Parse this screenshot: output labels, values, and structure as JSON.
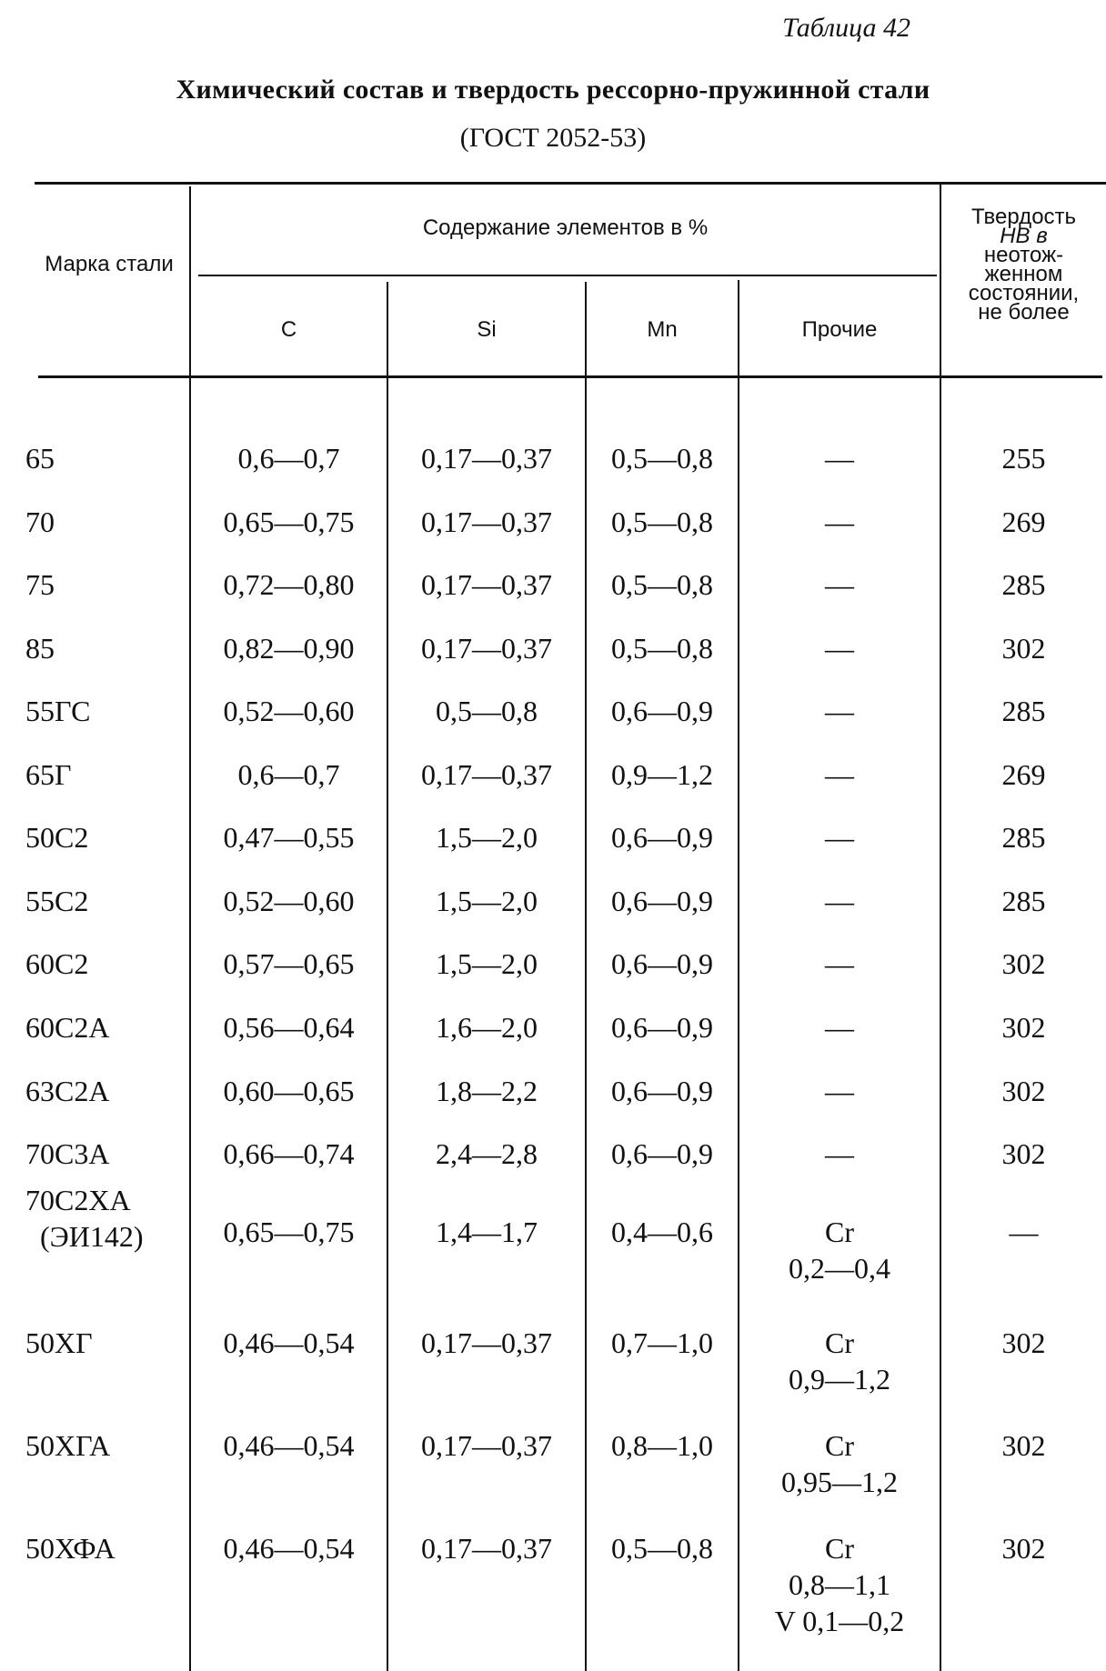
{
  "table_number": "Таблица 42",
  "title": "Химический состав и твердость рессорно-пружинной стали",
  "standard": "(ГОСТ 2052-53)",
  "headers": {
    "grade": "Марка стали",
    "content_group": "Содержание элементов в %",
    "c": "C",
    "si": "Si",
    "mn": "Mn",
    "other": "Прочие",
    "hardness_line1": "Твердость",
    "hardness_line2": "HB в",
    "hardness_line3": "неотож-",
    "hardness_line4": "женном",
    "hardness_line5": "состоянии,",
    "hardness_line6": "не более"
  },
  "rows": [
    {
      "grade": "65",
      "c": "0,6—0,7",
      "si": "0,17—0,37",
      "mn": "0,5—0,8",
      "other": "—",
      "hb": "255"
    },
    {
      "grade": "70",
      "c": "0,65—0,75",
      "si": "0,17—0,37",
      "mn": "0,5—0,8",
      "other": "—",
      "hb": "269"
    },
    {
      "grade": "75",
      "c": "0,72—0,80",
      "si": "0,17—0,37",
      "mn": "0,5—0,8",
      "other": "—",
      "hb": "285"
    },
    {
      "grade": "85",
      "c": "0,82—0,90",
      "si": "0,17—0,37",
      "mn": "0,5—0,8",
      "other": "—",
      "hb": "302"
    },
    {
      "grade": "55ГС",
      "c": "0,52—0,60",
      "si": "0,5—0,8",
      "mn": "0,6—0,9",
      "other": "—",
      "hb": "285"
    },
    {
      "grade": "65Г",
      "c": "0,6—0,7",
      "si": "0,17—0,37",
      "mn": "0,9—1,2",
      "other": "—",
      "hb": "269"
    },
    {
      "grade": "50С2",
      "c": "0,47—0,55",
      "si": "1,5—2,0",
      "mn": "0,6—0,9",
      "other": "—",
      "hb": "285"
    },
    {
      "grade": "55С2",
      "c": "0,52—0,60",
      "si": "1,5—2,0",
      "mn": "0,6—0,9",
      "other": "—",
      "hb": "285"
    },
    {
      "grade": "60С2",
      "c": "0,57—0,65",
      "si": "1,5—2,0",
      "mn": "0,6—0,9",
      "other": "—",
      "hb": "302"
    },
    {
      "grade": "60С2А",
      "c": "0,56—0,64",
      "si": "1,6—2,0",
      "mn": "0,6—0,9",
      "other": "—",
      "hb": "302"
    },
    {
      "grade": "63С2А",
      "c": "0,60—0,65",
      "si": "1,8—2,2",
      "mn": "0,6—0,9",
      "other": "—",
      "hb": "302"
    },
    {
      "grade": "70С3А",
      "c": "0,66—0,74",
      "si": "2,4—2,8",
      "mn": "0,6—0,9",
      "other": "—",
      "hb": "302"
    },
    {
      "grade": "70С2ХА",
      "grade2": "(ЭИ142)",
      "c": "0,65—0,75",
      "si": "1,4—1,7",
      "mn": "0,4—0,6",
      "other": "Cr",
      "other2": "0,2—0,4",
      "hb": "—"
    },
    {
      "grade": "50ХГ",
      "c": "0,46—0,54",
      "si": "0,17—0,37",
      "mn": "0,7—1,0",
      "other": "Cr",
      "other2": "0,9—1,2",
      "hb": "302"
    },
    {
      "grade": "50ХГА",
      "c": "0,46—0,54",
      "si": "0,17—0,37",
      "mn": "0,8—1,0",
      "other": "Cr",
      "other2": "0,95—1,2",
      "hb": "302"
    },
    {
      "grade": "50ХФА",
      "c": "0,46—0,54",
      "si": "0,17—0,37",
      "mn": "0,5—0,8",
      "other": "Cr",
      "other2": "0,8—1,1",
      "other3": "V 0,1—0,2",
      "hb": "302"
    }
  ]
}
